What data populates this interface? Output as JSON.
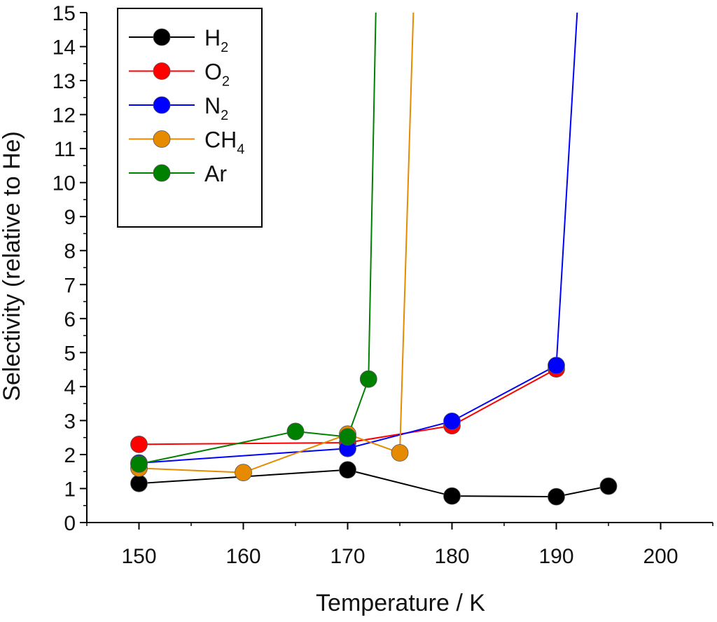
{
  "chart_data": {
    "type": "line",
    "xlabel": "Temperature / K",
    "ylabel": "Selectivity (relative to He)",
    "xlim": [
      145,
      205
    ],
    "ylim": [
      0,
      15
    ],
    "xticks": [
      150,
      160,
      170,
      180,
      190,
      200
    ],
    "yticks": [
      0,
      1,
      2,
      3,
      4,
      5,
      6,
      7,
      8,
      9,
      10,
      11,
      12,
      13,
      14,
      15
    ],
    "legend_position": "top-left",
    "series": [
      {
        "name": "H2",
        "label_main": "H",
        "label_sub": "2",
        "color": "#000000",
        "x": [
          150,
          170,
          180,
          190,
          195
        ],
        "y": [
          1.15,
          1.55,
          0.78,
          0.76,
          1.07
        ],
        "extension": null
      },
      {
        "name": "O2",
        "label_main": "O",
        "label_sub": "2",
        "color": "#ff0000",
        "x": [
          150,
          170,
          180,
          190
        ],
        "y": [
          2.3,
          2.35,
          2.85,
          4.52
        ],
        "extension": null
      },
      {
        "name": "N2",
        "label_main": "N",
        "label_sub": "2",
        "color": "#0000ff",
        "x": [
          150,
          170,
          180,
          190
        ],
        "y": [
          1.75,
          2.18,
          2.98,
          4.62
        ],
        "extension": {
          "x": 192,
          "y": 15
        }
      },
      {
        "name": "CH4",
        "label_main": "CH",
        "label_sub": "4",
        "color": "#e68a00",
        "x": [
          150,
          160,
          170,
          175
        ],
        "y": [
          1.6,
          1.47,
          2.6,
          2.05
        ],
        "extension": {
          "x": 176.3,
          "y": 15
        }
      },
      {
        "name": "Ar",
        "label_main": "Ar",
        "label_sub": "",
        "color": "#008000",
        "x": [
          150,
          165,
          170,
          172
        ],
        "y": [
          1.72,
          2.68,
          2.52,
          4.22
        ],
        "extension": {
          "x": 172.7,
          "y": 15
        }
      }
    ]
  }
}
